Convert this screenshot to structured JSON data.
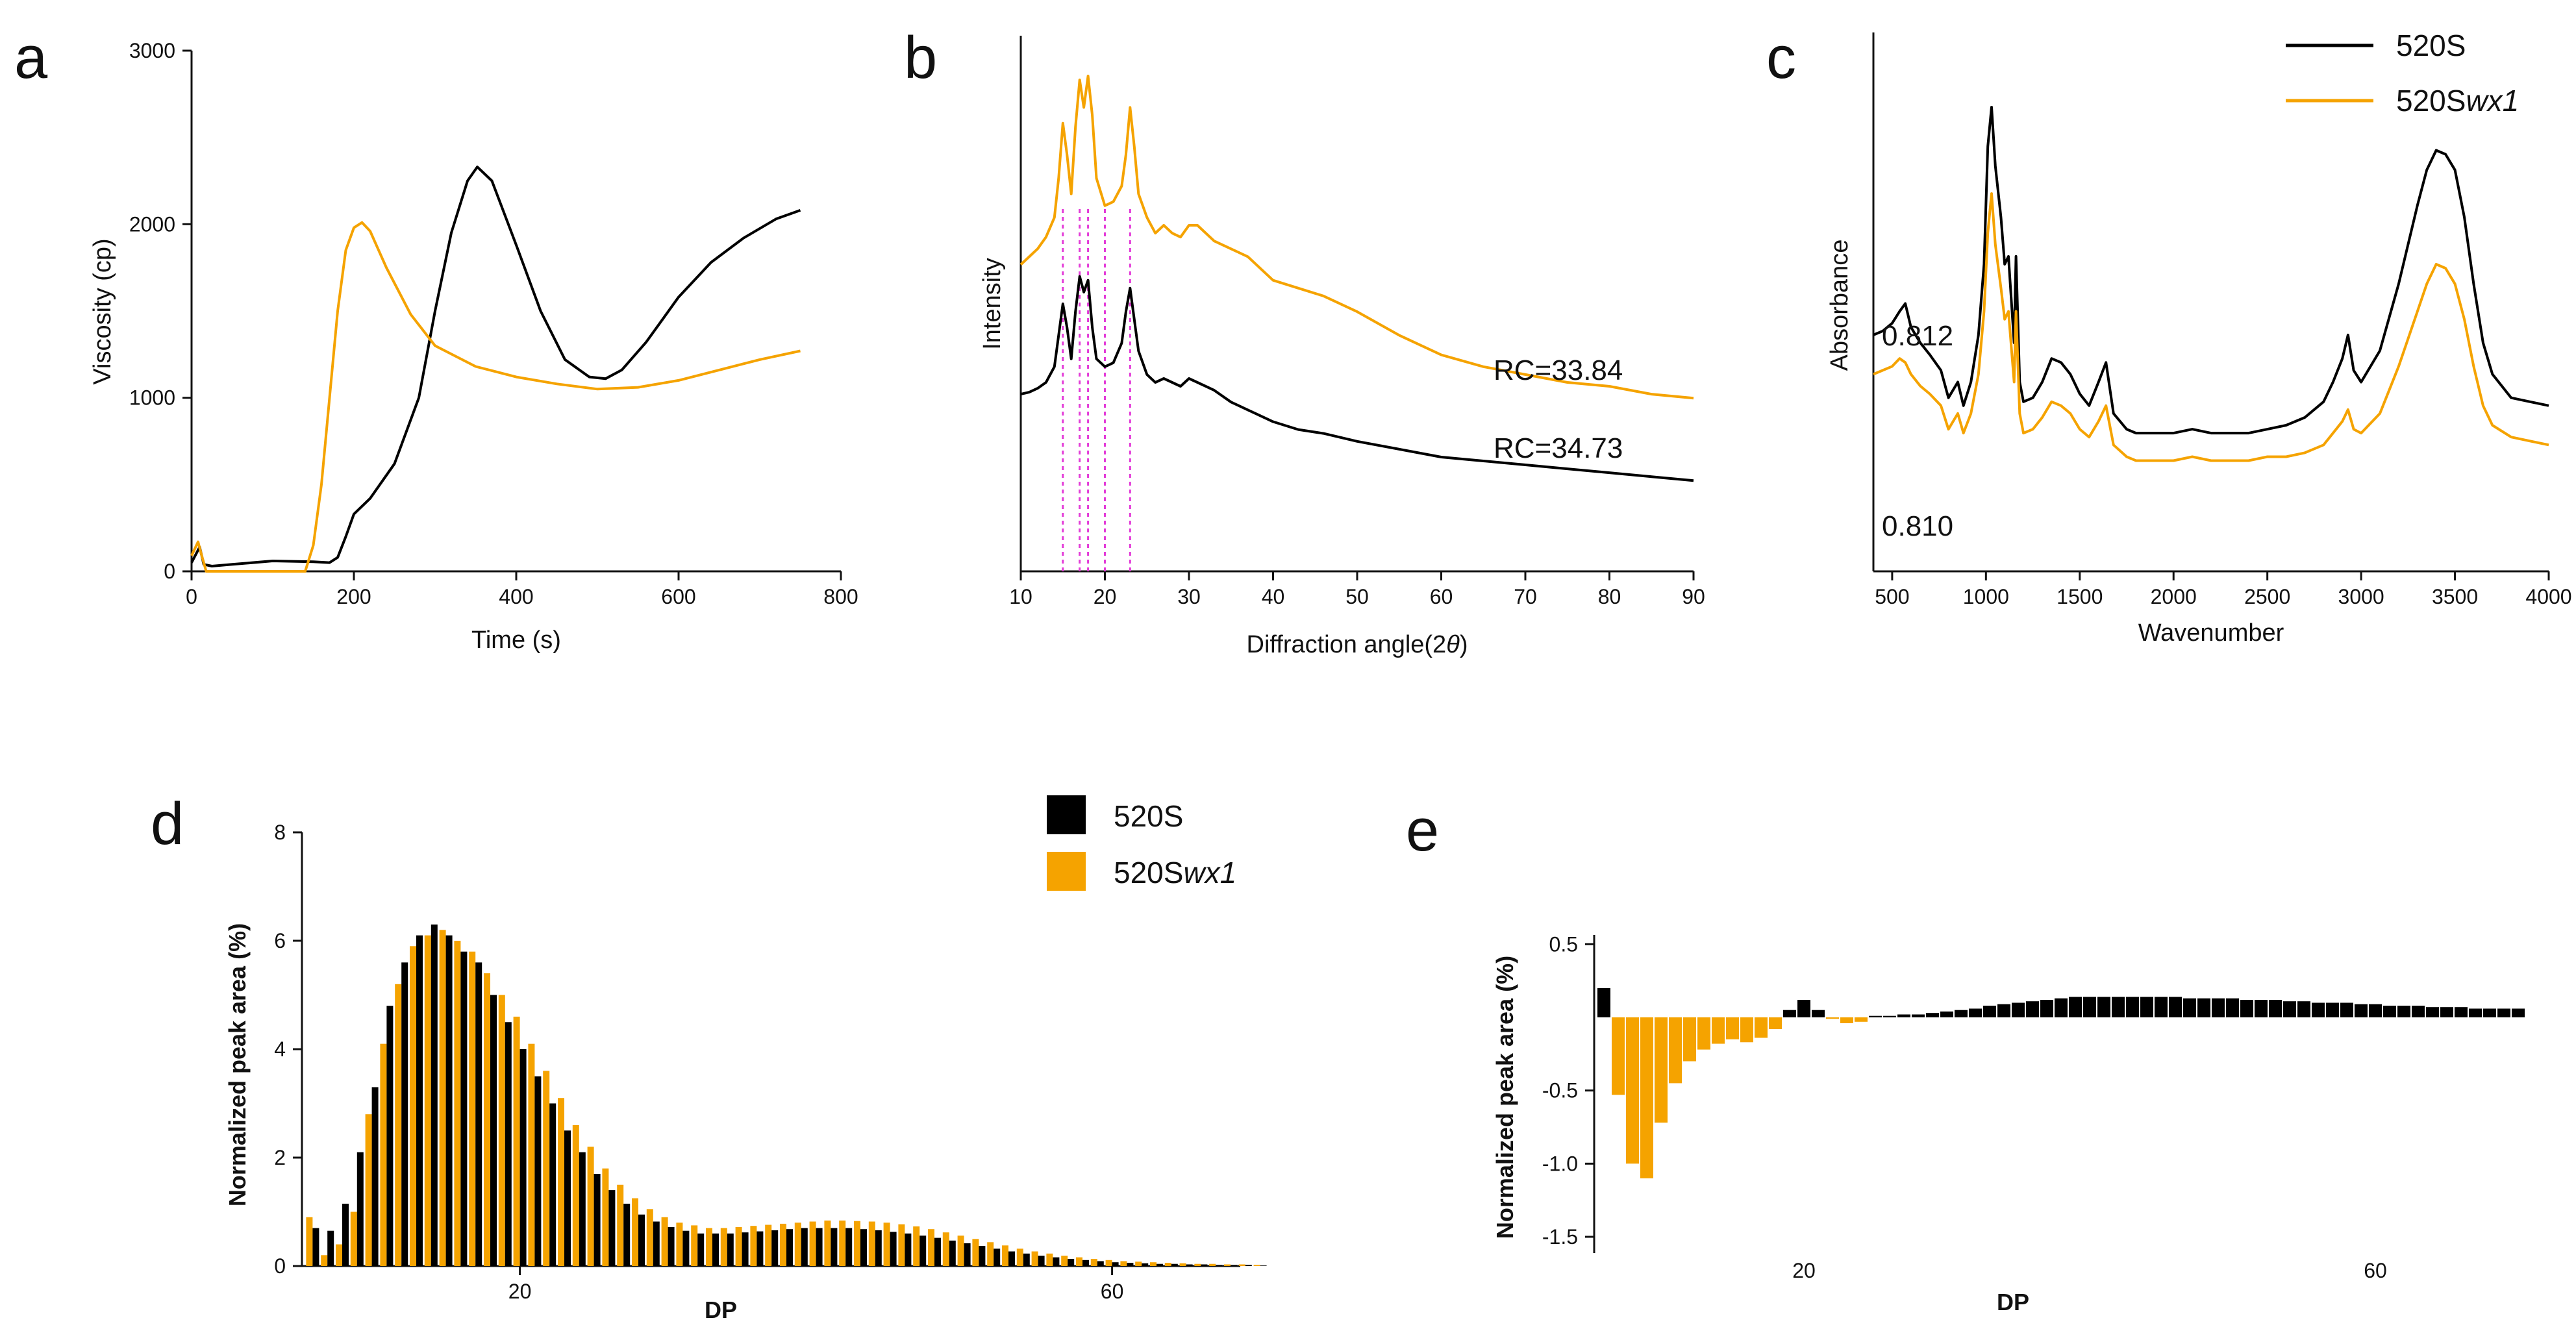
{
  "colors": {
    "s520": "#000000",
    "swx1": "#F5A300",
    "guide": "#E33BD8"
  },
  "panels": {
    "a": {
      "letter": "a"
    },
    "b": {
      "letter": "b"
    },
    "c": {
      "letter": "c"
    },
    "d": {
      "letter": "d"
    },
    "e": {
      "letter": "e"
    }
  },
  "chart_data": [
    {
      "panel": "a",
      "type": "line",
      "title": "",
      "xlabel": "Time (s)",
      "ylabel": "Viscosity (cp)",
      "xlim": [
        0,
        800
      ],
      "ylim": [
        0,
        3000
      ],
      "xticks": [
        0,
        200,
        400,
        600,
        800
      ],
      "yticks": [
        0,
        1000,
        2000,
        3000
      ],
      "grid": false,
      "series": [
        {
          "color": "#000000",
          "x": [
            0,
            10,
            15,
            25,
            50,
            100,
            150,
            170,
            180,
            190,
            200,
            220,
            250,
            280,
            300,
            320,
            340,
            352,
            370,
            400,
            430,
            460,
            490,
            510,
            530,
            560,
            600,
            640,
            680,
            720,
            750
          ],
          "y": [
            50,
            140,
            40,
            30,
            40,
            60,
            55,
            50,
            80,
            200,
            330,
            420,
            620,
            1000,
            1500,
            1950,
            2250,
            2330,
            2250,
            1880,
            1500,
            1220,
            1120,
            1110,
            1160,
            1320,
            1580,
            1780,
            1920,
            2030,
            2080
          ]
        },
        {
          "color": "#F5A300",
          "x": [
            0,
            8,
            12,
            18,
            140,
            150,
            160,
            170,
            180,
            190,
            200,
            210,
            220,
            240,
            270,
            300,
            350,
            400,
            450,
            500,
            550,
            600,
            650,
            700,
            750
          ],
          "y": [
            90,
            170,
            100,
            0,
            0,
            150,
            500,
            1000,
            1500,
            1850,
            1980,
            2010,
            1960,
            1750,
            1480,
            1300,
            1180,
            1120,
            1080,
            1050,
            1060,
            1100,
            1160,
            1220,
            1270
          ]
        }
      ]
    },
    {
      "panel": "b",
      "type": "line",
      "title": "",
      "xlabel": "Diffraction angle(2θ)",
      "ylabel": "Intensity",
      "xlim": [
        10,
        90
      ],
      "xticks": [
        10,
        20,
        30,
        40,
        50,
        60,
        70,
        80,
        90
      ],
      "guides_x": [
        15,
        17,
        18,
        20,
        23
      ],
      "annotations": [
        "RC=33.84",
        "RC=34.73"
      ],
      "series": [
        {
          "color": "#F5A300",
          "x": [
            10,
            11,
            12,
            13,
            14,
            14.5,
            15,
            15.5,
            16,
            16.5,
            17,
            17.5,
            18,
            18.5,
            19,
            20,
            21,
            22,
            22.5,
            23,
            23.5,
            24,
            25,
            26,
            27,
            28,
            29,
            30,
            31,
            33,
            35,
            37,
            40,
            43,
            46,
            50,
            55,
            60,
            65,
            70,
            75,
            80,
            85,
            90
          ],
          "y": [
            0.5,
            0.52,
            0.54,
            0.57,
            0.62,
            0.72,
            0.86,
            0.78,
            0.68,
            0.85,
            0.97,
            0.9,
            0.98,
            0.88,
            0.72,
            0.65,
            0.66,
            0.7,
            0.78,
            0.9,
            0.8,
            0.68,
            0.62,
            0.58,
            0.6,
            0.58,
            0.57,
            0.6,
            0.6,
            0.56,
            0.54,
            0.52,
            0.46,
            0.44,
            0.42,
            0.38,
            0.32,
            0.27,
            0.24,
            0.22,
            0.2,
            0.19,
            0.17,
            0.16
          ]
        },
        {
          "color": "#000000",
          "x": [
            10,
            11,
            12,
            13,
            14,
            14.5,
            15,
            15.5,
            16,
            16.5,
            17,
            17.5,
            18,
            18.5,
            19,
            20,
            21,
            22,
            22.5,
            23,
            23.5,
            24,
            25,
            26,
            27,
            28,
            29,
            30,
            31,
            33,
            35,
            37,
            40,
            43,
            46,
            50,
            55,
            60,
            65,
            70,
            75,
            80,
            85,
            90
          ],
          "y": [
            0.17,
            0.175,
            0.185,
            0.2,
            0.24,
            0.32,
            0.4,
            0.34,
            0.26,
            0.38,
            0.47,
            0.43,
            0.46,
            0.34,
            0.26,
            0.24,
            0.25,
            0.3,
            0.38,
            0.44,
            0.36,
            0.28,
            0.22,
            0.2,
            0.21,
            0.2,
            0.19,
            0.21,
            0.2,
            0.18,
            0.15,
            0.13,
            0.1,
            0.08,
            0.07,
            0.05,
            0.03,
            0.01,
            0.0,
            -0.01,
            -0.02,
            -0.03,
            -0.04,
            -0.05
          ]
        }
      ]
    },
    {
      "panel": "c",
      "type": "line",
      "title": "",
      "xlabel": "Wavenumber",
      "ylabel": "Absorbance",
      "xlim": [
        400,
        4000
      ],
      "xticks": [
        500,
        1000,
        1500,
        2000,
        2500,
        3000,
        3500,
        4000
      ],
      "annotations": [
        "0.812",
        "0.810"
      ],
      "legend": {
        "position": "top-right",
        "entries": [
          {
            "label": "520S",
            "color": "#000000"
          },
          {
            "label": "520Swx1",
            "color": "#F5A300"
          }
        ]
      },
      "series": [
        {
          "color": "#000000",
          "x": [
            400,
            450,
            500,
            540,
            570,
            600,
            650,
            700,
            760,
            800,
            850,
            880,
            920,
            960,
            990,
            1010,
            1030,
            1050,
            1080,
            1100,
            1120,
            1150,
            1160,
            1180,
            1200,
            1250,
            1300,
            1350,
            1400,
            1450,
            1500,
            1550,
            1600,
            1640,
            1680,
            1750,
            1800,
            1900,
            2000,
            2100,
            2200,
            2300,
            2400,
            2500,
            2600,
            2700,
            2800,
            2850,
            2900,
            2930,
            2960,
            3000,
            3100,
            3200,
            3300,
            3350,
            3400,
            3450,
            3500,
            3550,
            3600,
            3650,
            3700,
            3800,
            3900,
            4000
          ],
          "y": [
            0.42,
            0.43,
            0.45,
            0.48,
            0.5,
            0.44,
            0.4,
            0.37,
            0.33,
            0.26,
            0.3,
            0.24,
            0.3,
            0.42,
            0.6,
            0.9,
            1.0,
            0.85,
            0.72,
            0.6,
            0.62,
            0.4,
            0.62,
            0.3,
            0.25,
            0.26,
            0.3,
            0.36,
            0.35,
            0.32,
            0.27,
            0.24,
            0.3,
            0.35,
            0.22,
            0.18,
            0.17,
            0.17,
            0.17,
            0.18,
            0.17,
            0.17,
            0.17,
            0.18,
            0.19,
            0.21,
            0.25,
            0.3,
            0.36,
            0.42,
            0.33,
            0.3,
            0.38,
            0.55,
            0.75,
            0.84,
            0.89,
            0.88,
            0.84,
            0.72,
            0.55,
            0.4,
            0.32,
            0.26,
            0.25,
            0.24
          ]
        },
        {
          "color": "#F5A300",
          "x": [
            400,
            450,
            500,
            540,
            570,
            600,
            650,
            700,
            760,
            800,
            850,
            880,
            920,
            960,
            990,
            1010,
            1030,
            1050,
            1080,
            1100,
            1120,
            1150,
            1160,
            1180,
            1200,
            1250,
            1300,
            1350,
            1400,
            1450,
            1500,
            1550,
            1600,
            1640,
            1680,
            1750,
            1800,
            1900,
            2000,
            2100,
            2200,
            2300,
            2400,
            2500,
            2600,
            2700,
            2800,
            2850,
            2900,
            2930,
            2960,
            3000,
            3100,
            3200,
            3300,
            3350,
            3400,
            3450,
            3500,
            3550,
            3600,
            3650,
            3700,
            3800,
            3900,
            4000
          ],
          "y": [
            0.32,
            0.33,
            0.34,
            0.36,
            0.35,
            0.32,
            0.29,
            0.27,
            0.24,
            0.18,
            0.22,
            0.17,
            0.22,
            0.32,
            0.48,
            0.68,
            0.78,
            0.65,
            0.54,
            0.46,
            0.48,
            0.3,
            0.48,
            0.22,
            0.17,
            0.18,
            0.21,
            0.25,
            0.24,
            0.22,
            0.18,
            0.16,
            0.2,
            0.24,
            0.14,
            0.11,
            0.1,
            0.1,
            0.1,
            0.11,
            0.1,
            0.1,
            0.1,
            0.11,
            0.11,
            0.12,
            0.14,
            0.17,
            0.2,
            0.23,
            0.18,
            0.17,
            0.22,
            0.34,
            0.48,
            0.55,
            0.6,
            0.59,
            0.55,
            0.46,
            0.34,
            0.24,
            0.19,
            0.16,
            0.15,
            0.14
          ]
        }
      ]
    },
    {
      "panel": "d",
      "type": "bar",
      "title": "",
      "xlabel": "DP",
      "ylabel": "Normalized peak area (%)",
      "ylim": [
        0,
        8
      ],
      "xticks": [
        20,
        60
      ],
      "yticks": [
        0,
        2,
        4,
        6,
        8
      ],
      "legend": {
        "position": "top-right",
        "entries": [
          {
            "label": "520S",
            "color": "#000000"
          },
          {
            "label": "520Swx1",
            "color": "#F5A300"
          }
        ]
      },
      "categories": [
        6,
        7,
        8,
        9,
        10,
        11,
        12,
        13,
        14,
        15,
        16,
        17,
        18,
        19,
        20,
        21,
        22,
        23,
        24,
        25,
        26,
        27,
        28,
        29,
        30,
        31,
        32,
        33,
        34,
        35,
        36,
        37,
        38,
        39,
        40,
        41,
        42,
        43,
        44,
        45,
        46,
        47,
        48,
        49,
        50,
        51,
        52,
        53,
        54,
        55,
        56,
        57,
        58,
        59,
        60,
        61,
        62,
        63,
        64,
        65,
        66,
        67,
        68,
        69,
        70
      ],
      "series": [
        {
          "color": "#F5A300",
          "values": [
            0.9,
            0.2,
            0.4,
            1.0,
            2.8,
            4.1,
            5.2,
            5.9,
            6.1,
            6.2,
            6.0,
            5.8,
            5.4,
            5.0,
            4.6,
            4.1,
            3.6,
            3.1,
            2.6,
            2.2,
            1.8,
            1.5,
            1.25,
            1.05,
            0.9,
            0.8,
            0.75,
            0.7,
            0.7,
            0.72,
            0.74,
            0.76,
            0.78,
            0.8,
            0.82,
            0.84,
            0.84,
            0.83,
            0.82,
            0.8,
            0.77,
            0.73,
            0.68,
            0.62,
            0.56,
            0.5,
            0.44,
            0.38,
            0.32,
            0.27,
            0.23,
            0.19,
            0.16,
            0.13,
            0.11,
            0.09,
            0.08,
            0.07,
            0.06,
            0.05,
            0.04,
            0.04,
            0.03,
            0.03,
            0.02
          ]
        },
        {
          "color": "#000000",
          "values": [
            0.7,
            0.65,
            1.15,
            2.1,
            3.3,
            4.8,
            5.6,
            6.1,
            6.3,
            6.1,
            5.8,
            5.6,
            5.0,
            4.5,
            4.0,
            3.5,
            3.0,
            2.5,
            2.1,
            1.7,
            1.4,
            1.15,
            0.95,
            0.82,
            0.72,
            0.65,
            0.6,
            0.6,
            0.6,
            0.62,
            0.64,
            0.66,
            0.68,
            0.7,
            0.7,
            0.7,
            0.7,
            0.68,
            0.66,
            0.63,
            0.6,
            0.56,
            0.52,
            0.47,
            0.42,
            0.37,
            0.32,
            0.27,
            0.23,
            0.19,
            0.16,
            0.13,
            0.11,
            0.09,
            0.07,
            0.06,
            0.05,
            0.04,
            0.04,
            0.03,
            0.03,
            0.02,
            0.02,
            0.02,
            0.01
          ]
        }
      ]
    },
    {
      "panel": "e",
      "type": "bar",
      "title": "",
      "xlabel": "DP",
      "ylabel": "Normalized peak area (%)",
      "ylim": [
        -1.6,
        0.6
      ],
      "xticks": [
        20,
        60
      ],
      "yticks": [
        0.5,
        -0.5,
        -1.0,
        -1.5
      ],
      "categories": [
        6,
        7,
        8,
        9,
        10,
        11,
        12,
        13,
        14,
        15,
        16,
        17,
        18,
        19,
        20,
        21,
        22,
        23,
        24,
        25,
        26,
        27,
        28,
        29,
        30,
        31,
        32,
        33,
        34,
        35,
        36,
        37,
        38,
        39,
        40,
        41,
        42,
        43,
        44,
        45,
        46,
        47,
        48,
        49,
        50,
        51,
        52,
        53,
        54,
        55,
        56,
        57,
        58,
        59,
        60,
        61,
        62,
        63,
        64,
        65,
        66,
        67,
        68,
        69,
        70
      ],
      "values": [
        0.2,
        -0.53,
        -1.0,
        -1.1,
        -0.72,
        -0.45,
        -0.3,
        -0.22,
        -0.18,
        -0.15,
        -0.17,
        -0.14,
        -0.08,
        0.05,
        0.12,
        0.05,
        -0.01,
        -0.04,
        -0.03,
        0.01,
        0.01,
        0.02,
        0.02,
        0.03,
        0.04,
        0.05,
        0.06,
        0.08,
        0.09,
        0.1,
        0.11,
        0.12,
        0.13,
        0.14,
        0.14,
        0.14,
        0.14,
        0.14,
        0.14,
        0.14,
        0.14,
        0.13,
        0.13,
        0.13,
        0.13,
        0.12,
        0.12,
        0.12,
        0.11,
        0.11,
        0.1,
        0.1,
        0.1,
        0.09,
        0.09,
        0.08,
        0.08,
        0.08,
        0.07,
        0.07,
        0.07,
        0.06,
        0.06,
        0.06,
        0.06
      ]
    }
  ]
}
